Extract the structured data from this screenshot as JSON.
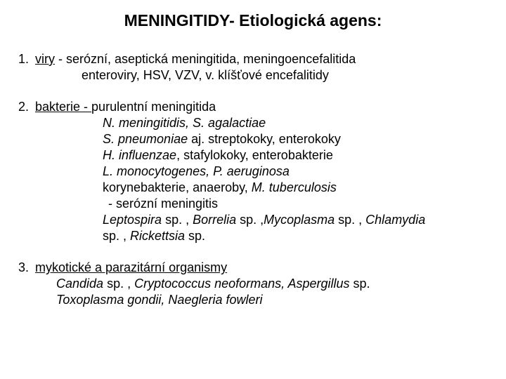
{
  "title": "MENINGITIDY- Etiologická agens:",
  "s1": {
    "num": "1.",
    "head_u": "viry",
    "head_rest": "  -  serózní, aseptická meningitida, meningoencefalitida",
    "line2": "enteroviry, HSV, VZV, v. klíšťové encefalitidy"
  },
  "s2": {
    "num": "2.",
    "head_u": "bakterie - ",
    "head_rest": "purulentní meningitida",
    "l1_i": "N. meningitidis, S. agalactiae",
    "l2_i": "S. pneumoniae ",
    "l2_r": " aj. streptokoky, enterokoky",
    "l3_i": "H. influenzae",
    "l3_r": ", stafylokoky, enterobakterie",
    "l4_i": "L. monocytogenes, P. aeruginosa",
    "l5_a": "korynebakterie, anaeroby,  ",
    "l5_i": "M. tuberculosis",
    "l6": " - serózní meningitis",
    "l7_a": "Leptospira",
    "l7_b": " sp. , ",
    "l7_c": "Borrelia",
    "l7_d": " sp. ,",
    "l7_e": "Mycoplasma",
    "l7_f": " sp. , ",
    "l7_g": "Chlamydia",
    "l8_a": "sp. , ",
    "l8_b": "Rickettsia",
    "l8_c": " sp."
  },
  "s3": {
    "num": "3.",
    "head_u": "mykotické a parazitární organismy",
    "l1_a": "Candida",
    "l1_b": " sp. , ",
    "l1_c": "Cryptococcus neoformans, Aspergillus",
    "l1_d": " sp.",
    "l2": "Toxoplasma gondii, Naegleria fowleri"
  },
  "colors": {
    "text": "#000000",
    "bg": "#ffffff"
  },
  "font": {
    "title_pt": 23,
    "body_pt": 18,
    "family": "Arial"
  }
}
